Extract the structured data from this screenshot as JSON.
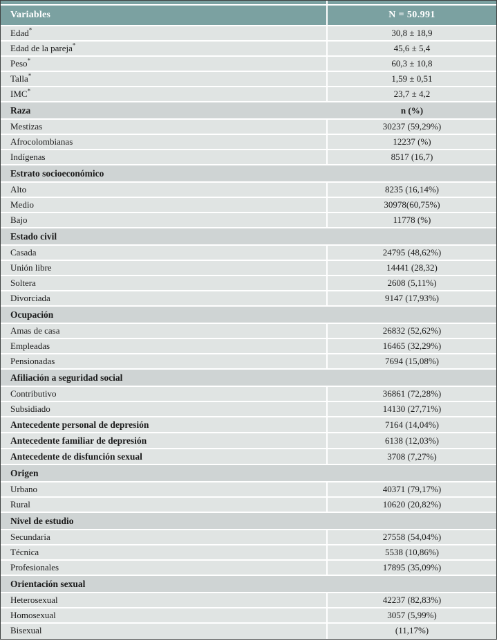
{
  "table": {
    "colors": {
      "header_bg": "#7ba1a1",
      "section_bg": "#cfd4d4",
      "row_bg": "#e0e4e3",
      "divider": "#ffffff",
      "header_text": "#ffffff",
      "body_text": "#1b1b1b"
    },
    "header": {
      "col1": "Variables",
      "col2": "N = 50.991"
    },
    "rows": [
      {
        "type": "stat",
        "label": "Edad",
        "sup": "*",
        "value": "30,8 ± 18,9"
      },
      {
        "type": "stat",
        "label": "Edad de la pareja",
        "sup": "*",
        "value": "45,6 ± 5,4"
      },
      {
        "type": "stat",
        "label": "Peso",
        "sup": "*",
        "value": "60,3 ± 10,8"
      },
      {
        "type": "stat",
        "label": "Talla",
        "sup": "*",
        "value": "1,59 ± 0,51"
      },
      {
        "type": "stat",
        "label": "IMC",
        "sup": "*",
        "value": "23,7 ± 4,2"
      },
      {
        "type": "section",
        "label": "Raza",
        "sup": "",
        "value": "n (%)"
      },
      {
        "type": "stat",
        "label": "Mestizas",
        "sup": "",
        "value": "30237 (59,29%)"
      },
      {
        "type": "stat",
        "label": "Afrocolombianas",
        "sup": "",
        "value": "12237 (%)"
      },
      {
        "type": "stat",
        "label": "Indígenas",
        "sup": "",
        "value": "8517 (16,7)"
      },
      {
        "type": "section",
        "label": "Estrato socioeconómico",
        "sup": "",
        "value": ""
      },
      {
        "type": "stat",
        "label": "Alto",
        "sup": "",
        "value": "8235 (16,14%)"
      },
      {
        "type": "stat",
        "label": "Medio",
        "sup": "",
        "value": "30978(60,75%)"
      },
      {
        "type": "stat",
        "label": "Bajo",
        "sup": "",
        "value": "11778 (%)"
      },
      {
        "type": "section",
        "label": "Estado civil",
        "sup": "",
        "value": ""
      },
      {
        "type": "stat",
        "label": "Casada",
        "sup": "",
        "value": "24795 (48,62%)"
      },
      {
        "type": "stat",
        "label": "Unión libre",
        "sup": "",
        "value": "14441 (28,32)"
      },
      {
        "type": "stat",
        "label": "Soltera",
        "sup": "",
        "value": "2608 (5,11%)"
      },
      {
        "type": "stat",
        "label": "Divorciada",
        "sup": "",
        "value": "9147 (17,93%)"
      },
      {
        "type": "section",
        "label": "Ocupación",
        "sup": "",
        "value": ""
      },
      {
        "type": "stat",
        "label": "Amas de casa",
        "sup": "",
        "value": "26832 (52,62%)"
      },
      {
        "type": "stat",
        "label": "Empleadas",
        "sup": "",
        "value": "16465 (32,29%)"
      },
      {
        "type": "stat",
        "label": "Pensionadas",
        "sup": "",
        "value": "7694 (15,08%)"
      },
      {
        "type": "section",
        "label": "Afiliación a seguridad social",
        "sup": "",
        "value": ""
      },
      {
        "type": "stat",
        "label": "Contributivo",
        "sup": "",
        "value": "36861 (72,28%)"
      },
      {
        "type": "stat",
        "label": "Subsidiado",
        "sup": "",
        "value": "14130 (27,71%)"
      },
      {
        "type": "bold_stat",
        "label": "Antecedente personal de depresión",
        "sup": "",
        "value": "7164 (14,04%)"
      },
      {
        "type": "bold_stat",
        "label": "Antecedente familiar de depresión",
        "sup": "",
        "value": "6138 (12,03%)"
      },
      {
        "type": "bold_stat",
        "label": "Antecedente de disfunción sexual",
        "sup": "",
        "value": "3708 (7,27%)"
      },
      {
        "type": "section",
        "label": "Origen",
        "sup": "",
        "value": ""
      },
      {
        "type": "stat",
        "label": "Urbano",
        "sup": "",
        "value": "40371 (79,17%)"
      },
      {
        "type": "stat",
        "label": "Rural",
        "sup": "",
        "value": "10620 (20,82%)"
      },
      {
        "type": "section",
        "label": "Nivel de estudio",
        "sup": "",
        "value": ""
      },
      {
        "type": "stat",
        "label": "Secundaria",
        "sup": "",
        "value": "27558 (54,04%)"
      },
      {
        "type": "stat",
        "label": "Técnica",
        "sup": "",
        "value": "5538 (10,86%)"
      },
      {
        "type": "stat",
        "label": "Profesionales",
        "sup": "",
        "value": "17895 (35,09%)"
      },
      {
        "type": "section",
        "label": "Orientación sexual",
        "sup": "",
        "value": ""
      },
      {
        "type": "stat",
        "label": "Heterosexual",
        "sup": "",
        "value": "42237 (82,83%)"
      },
      {
        "type": "stat",
        "label": "Homosexual",
        "sup": "",
        "value": "3057 (5,99%)"
      },
      {
        "type": "stat",
        "label": "Bisexual",
        "sup": "",
        "value": "(11,17%)"
      }
    ]
  }
}
